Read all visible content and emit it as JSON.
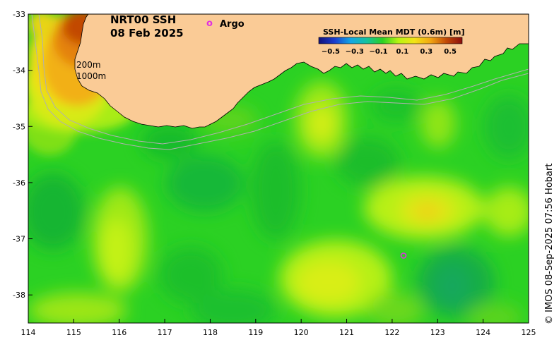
{
  "map": {
    "title_line1": "NRT00 SSH",
    "title_line2": "08 Feb 2025",
    "argo_marker": "o",
    "argo_label": "Argo",
    "contour_shallow": "200m",
    "contour_deep": "1000m",
    "credit": "© IMOS 08-Sep-2025 07:56 Hobart",
    "lon_ticks": [
      "114",
      "115",
      "116",
      "117",
      "118",
      "119",
      "120",
      "121",
      "122",
      "123",
      "124",
      "125"
    ],
    "lat_ticks": [
      "-33",
      "-34",
      "-35",
      "-36",
      "-37",
      "-38"
    ],
    "lon_range": [
      114,
      125
    ],
    "lat_range": [
      -33,
      -38.5
    ],
    "argo_floats": [
      {
        "lon": 122.25,
        "lat": -37.3
      }
    ],
    "colors": {
      "land": "#facb96",
      "ocean_base": "#2bd123",
      "argo": "#e030e0",
      "bathy": "#b0b0b0"
    }
  },
  "legend": {
    "title": "SSH-Local Mean MDT (0.6m) [m]",
    "ticks": [
      "−0.5",
      "−0.3",
      "−0.1",
      "0.1",
      "0.3",
      "0.5"
    ],
    "range": [
      -0.6,
      0.6
    ],
    "colors": [
      "#14127a",
      "#1a3ccf",
      "#12a6e6",
      "#15c2a0",
      "#2bd123",
      "#b8f511",
      "#f2e416",
      "#f2a712",
      "#c24a06",
      "#8b0d0d"
    ]
  }
}
